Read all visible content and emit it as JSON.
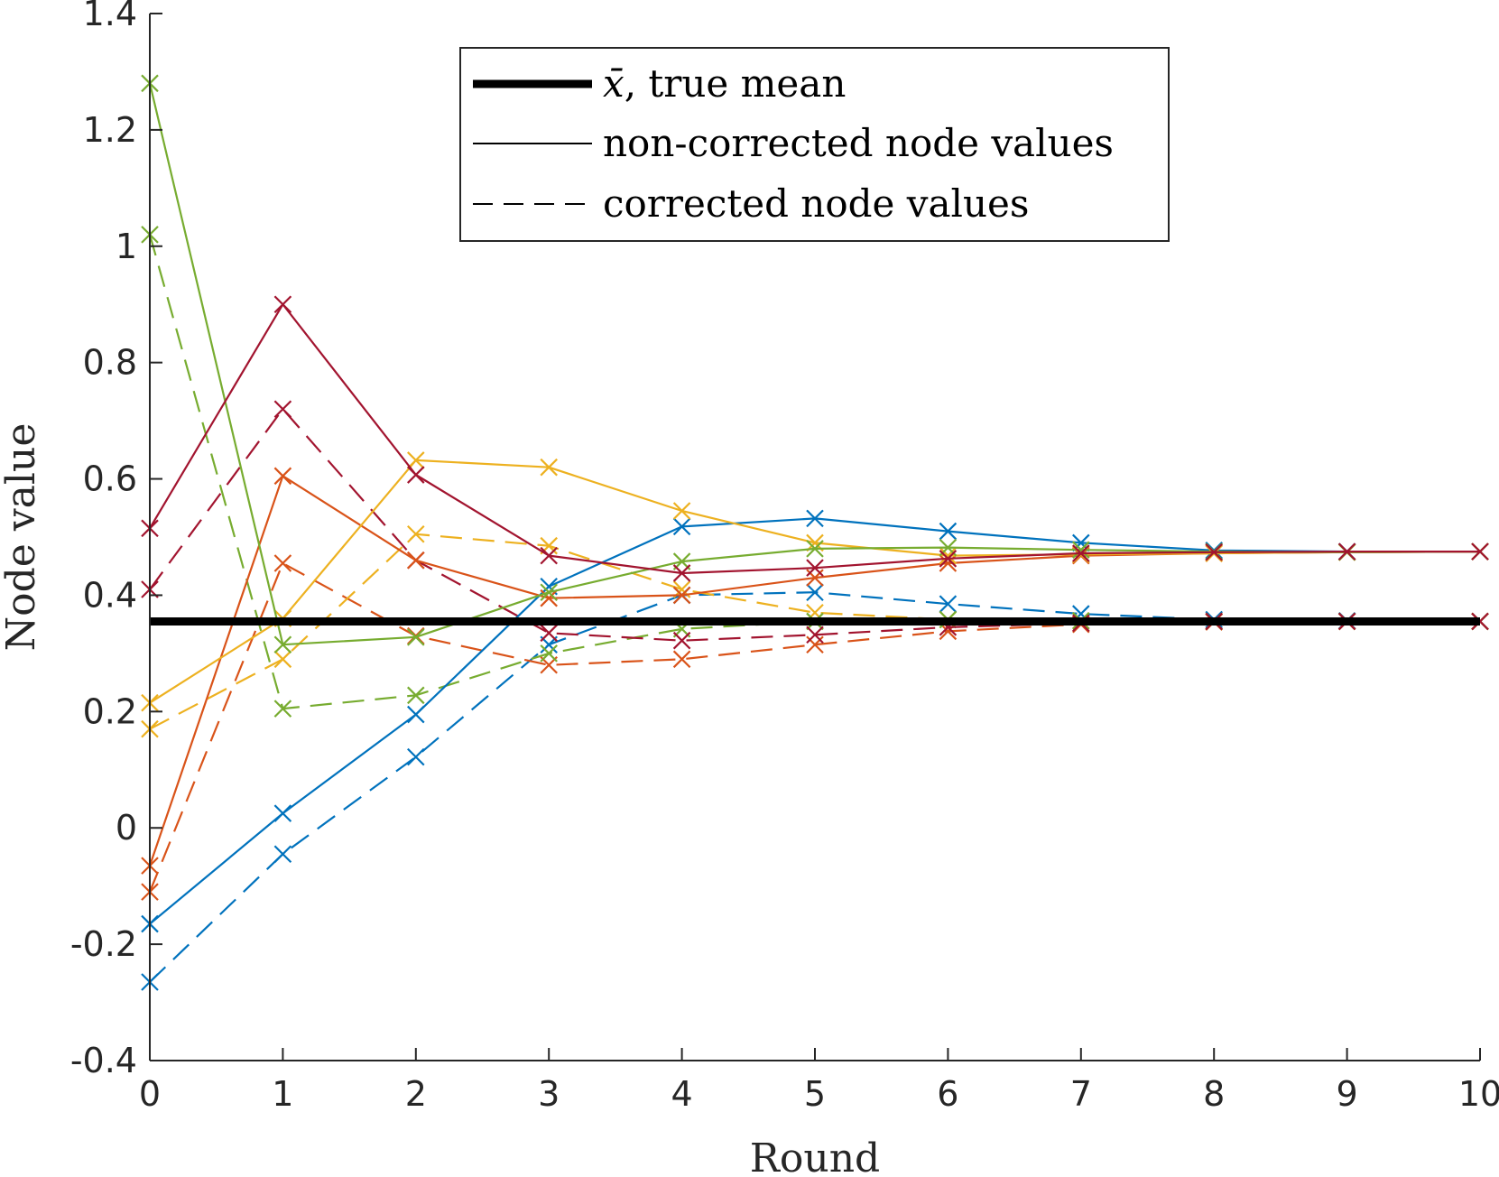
{
  "chart_data": {
    "type": "line",
    "xlabel": "Round",
    "ylabel": "Node value",
    "xlim": [
      0,
      10
    ],
    "ylim": [
      -0.4,
      1.4
    ],
    "xticks": [
      0,
      1,
      2,
      3,
      4,
      5,
      6,
      7,
      8,
      9,
      10
    ],
    "yticks": [
      -0.4,
      -0.2,
      0,
      0.2,
      0.4,
      0.6,
      0.8,
      1,
      1.2,
      1.4
    ],
    "xtick_labels": [
      "0",
      "1",
      "2",
      "3",
      "4",
      "5",
      "6",
      "7",
      "8",
      "9",
      "10"
    ],
    "ytick_labels": [
      "-0.4",
      "-0.2",
      "0",
      "0.2",
      "0.4",
      "0.6",
      "0.8",
      "1",
      "1.2",
      "1.4"
    ],
    "grid": false,
    "legend_position": "top-center",
    "legend": [
      {
        "symbol": "x̄",
        "text": ", true mean",
        "style": "thick-solid"
      },
      {
        "text": "non-corrected node values",
        "style": "solid"
      },
      {
        "text": "corrected node values",
        "style": "dashed"
      }
    ],
    "true_mean": 0.355,
    "x": [
      0,
      1,
      2,
      3,
      4,
      5,
      6,
      7,
      8,
      9,
      10
    ],
    "series": [
      {
        "color": "#0072BD",
        "style": "solid",
        "values": [
          -0.165,
          0.025,
          0.195,
          0.415,
          0.518,
          0.532,
          0.51,
          0.49,
          0.477,
          0.475,
          0.475
        ]
      },
      {
        "color": "#D95319",
        "style": "solid",
        "values": [
          -0.065,
          0.605,
          0.46,
          0.395,
          0.4,
          0.43,
          0.455,
          0.468,
          0.472,
          0.474,
          0.475
        ]
      },
      {
        "color": "#EDB120",
        "style": "solid",
        "values": [
          0.215,
          0.36,
          0.632,
          0.62,
          0.545,
          0.49,
          0.468,
          0.47,
          0.472,
          0.474,
          0.475
        ]
      },
      {
        "color": "#77AC30",
        "style": "solid",
        "values": [
          1.28,
          0.315,
          0.328,
          0.405,
          0.458,
          0.48,
          0.482,
          0.478,
          0.475,
          0.474,
          0.475
        ]
      },
      {
        "color": "#A2142F",
        "style": "solid",
        "values": [
          0.515,
          0.9,
          0.607,
          0.468,
          0.438,
          0.447,
          0.463,
          0.472,
          0.474,
          0.475,
          0.475
        ]
      },
      {
        "color": "#0072BD",
        "style": "dashed",
        "values": [
          -0.265,
          -0.045,
          0.122,
          0.315,
          0.4,
          0.405,
          0.385,
          0.368,
          0.358,
          0.356,
          0.355
        ]
      },
      {
        "color": "#D95319",
        "style": "dashed",
        "values": [
          -0.11,
          0.455,
          0.33,
          0.28,
          0.29,
          0.315,
          0.338,
          0.35,
          0.354,
          0.355,
          0.355
        ]
      },
      {
        "color": "#EDB120",
        "style": "dashed",
        "values": [
          0.17,
          0.29,
          0.505,
          0.485,
          0.41,
          0.37,
          0.358,
          0.356,
          0.355,
          0.355,
          0.355
        ]
      },
      {
        "color": "#77AC30",
        "style": "dashed",
        "values": [
          1.02,
          0.205,
          0.228,
          0.3,
          0.342,
          0.355,
          0.358,
          0.356,
          0.355,
          0.355,
          0.355
        ]
      },
      {
        "color": "#A2142F",
        "style": "dashed",
        "values": [
          0.41,
          0.72,
          0.46,
          0.335,
          0.322,
          0.332,
          0.345,
          0.352,
          0.355,
          0.355,
          0.355
        ]
      }
    ]
  }
}
